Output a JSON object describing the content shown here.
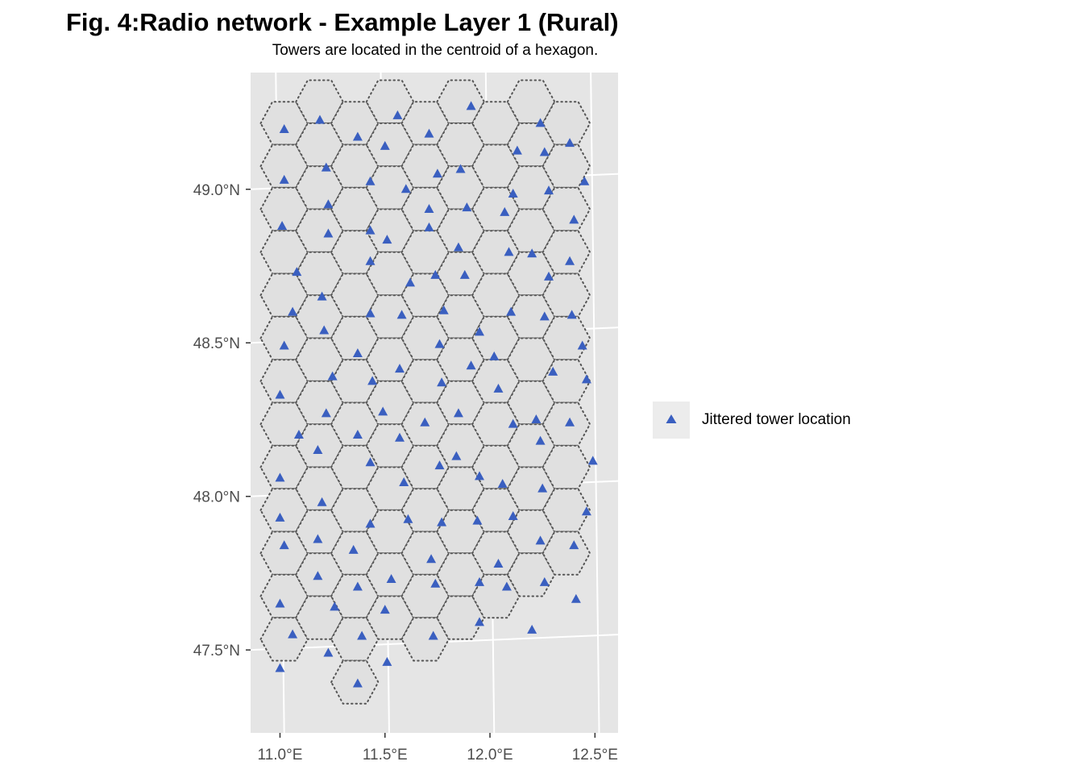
{
  "title": "Fig. 4:Radio network - Example Layer 1 (Rural)",
  "subtitle": "Towers are located in the centroid of a hexagon.",
  "colors": {
    "panel": "#e5e5e5",
    "grid": "#ffffff",
    "hex_fill": "#e0e0e0",
    "hex_stroke": "#555555",
    "marker": "#3a5fc0"
  },
  "legend": {
    "label": "Jittered tower location",
    "marker_icon": "triangle-marker-icon"
  },
  "chart_data": {
    "type": "scatter",
    "xlim": [
      10.86,
      12.61
    ],
    "ylim": [
      47.23,
      49.38
    ],
    "x_ticks": [
      {
        "value": 11.0,
        "label": "11.0°E"
      },
      {
        "value": 11.5,
        "label": "11.5°E"
      },
      {
        "value": 12.0,
        "label": "12.0°E"
      },
      {
        "value": 12.5,
        "label": "12.5°E"
      }
    ],
    "y_ticks": [
      {
        "value": 47.5,
        "label": "47.5°N"
      },
      {
        "value": 48.0,
        "label": "48.0°N"
      },
      {
        "value": 48.5,
        "label": "48.5°N"
      },
      {
        "value": 49.0,
        "label": "49.0°N"
      }
    ],
    "hex_columns": [
      {
        "center_x": 11.02,
        "top_y": 49.215,
        "count": 13
      },
      {
        "center_x": 11.188,
        "top_y": 49.285,
        "count": 13
      },
      {
        "center_x": 11.356,
        "top_y": 49.215,
        "count": 14
      },
      {
        "center_x": 11.524,
        "top_y": 49.285,
        "count": 13
      },
      {
        "center_x": 11.692,
        "top_y": 49.215,
        "count": 13
      },
      {
        "center_x": 11.86,
        "top_y": 49.285,
        "count": 13
      },
      {
        "center_x": 12.028,
        "top_y": 49.215,
        "count": 12
      },
      {
        "center_x": 12.196,
        "top_y": 49.285,
        "count": 12
      },
      {
        "center_x": 12.364,
        "top_y": 49.215,
        "count": 11
      }
    ],
    "hex_spacing_y": 0.14,
    "hex_radius_x": 0.112,
    "towers": [
      [
        11.02,
        49.195
      ],
      [
        11.02,
        49.03
      ],
      [
        11.01,
        48.88
      ],
      [
        11.08,
        48.73
      ],
      [
        11.06,
        48.6
      ],
      [
        11.02,
        48.49
      ],
      [
        11.0,
        48.33
      ],
      [
        11.09,
        48.2
      ],
      [
        11.0,
        48.06
      ],
      [
        11.0,
        47.93
      ],
      [
        11.02,
        47.84
      ],
      [
        11.0,
        47.65
      ],
      [
        11.06,
        47.55
      ],
      [
        11.0,
        47.44
      ],
      [
        11.19,
        49.225
      ],
      [
        11.22,
        49.07
      ],
      [
        11.23,
        48.95
      ],
      [
        11.23,
        48.855
      ],
      [
        11.2,
        48.65
      ],
      [
        11.21,
        48.54
      ],
      [
        11.25,
        48.39
      ],
      [
        11.22,
        48.27
      ],
      [
        11.18,
        48.15
      ],
      [
        11.2,
        47.98
      ],
      [
        11.18,
        47.86
      ],
      [
        11.18,
        47.74
      ],
      [
        11.26,
        47.64
      ],
      [
        11.23,
        47.49
      ],
      [
        11.37,
        49.17
      ],
      [
        11.43,
        49.025
      ],
      [
        11.43,
        48.865
      ],
      [
        11.43,
        48.765
      ],
      [
        11.43,
        48.595
      ],
      [
        11.37,
        48.465
      ],
      [
        11.44,
        48.375
      ],
      [
        11.37,
        48.2
      ],
      [
        11.43,
        48.11
      ],
      [
        11.43,
        47.91
      ],
      [
        11.35,
        47.825
      ],
      [
        11.37,
        47.705
      ],
      [
        11.39,
        47.545
      ],
      [
        11.37,
        47.39
      ],
      [
        11.56,
        49.24
      ],
      [
        11.5,
        49.14
      ],
      [
        11.6,
        49.0
      ],
      [
        11.51,
        48.835
      ],
      [
        11.62,
        48.695
      ],
      [
        11.58,
        48.59
      ],
      [
        11.57,
        48.415
      ],
      [
        11.49,
        48.275
      ],
      [
        11.57,
        48.19
      ],
      [
        11.59,
        48.045
      ],
      [
        11.61,
        47.925
      ],
      [
        11.53,
        47.73
      ],
      [
        11.5,
        47.63
      ],
      [
        11.51,
        47.46
      ],
      [
        11.71,
        49.18
      ],
      [
        11.75,
        49.05
      ],
      [
        11.71,
        48.935
      ],
      [
        11.71,
        48.875
      ],
      [
        11.74,
        48.72
      ],
      [
        11.78,
        48.605
      ],
      [
        11.76,
        48.495
      ],
      [
        11.77,
        48.37
      ],
      [
        11.69,
        48.24
      ],
      [
        11.76,
        48.1
      ],
      [
        11.77,
        47.915
      ],
      [
        11.72,
        47.795
      ],
      [
        11.74,
        47.715
      ],
      [
        11.73,
        47.545
      ],
      [
        11.91,
        49.27
      ],
      [
        11.86,
        49.065
      ],
      [
        11.89,
        48.94
      ],
      [
        11.85,
        48.81
      ],
      [
        11.88,
        48.72
      ],
      [
        11.95,
        48.535
      ],
      [
        11.91,
        48.425
      ],
      [
        11.85,
        48.27
      ],
      [
        11.84,
        48.13
      ],
      [
        11.95,
        48.065
      ],
      [
        11.94,
        47.92
      ],
      [
        11.95,
        47.72
      ],
      [
        11.95,
        47.59
      ],
      [
        12.13,
        49.125
      ],
      [
        12.11,
        48.985
      ],
      [
        12.07,
        48.925
      ],
      [
        12.09,
        48.795
      ],
      [
        12.1,
        48.6
      ],
      [
        12.02,
        48.455
      ],
      [
        12.04,
        48.35
      ],
      [
        12.11,
        48.235
      ],
      [
        12.06,
        48.04
      ],
      [
        12.11,
        47.935
      ],
      [
        12.04,
        47.78
      ],
      [
        12.08,
        47.705
      ],
      [
        12.24,
        49.215
      ],
      [
        12.26,
        49.12
      ],
      [
        12.28,
        48.995
      ],
      [
        12.2,
        48.79
      ],
      [
        12.28,
        48.715
      ],
      [
        12.26,
        48.585
      ],
      [
        12.3,
        48.405
      ],
      [
        12.22,
        48.25
      ],
      [
        12.24,
        48.18
      ],
      [
        12.25,
        48.025
      ],
      [
        12.24,
        47.855
      ],
      [
        12.26,
        47.72
      ],
      [
        12.2,
        47.565
      ],
      [
        12.38,
        49.15
      ],
      [
        12.45,
        49.025
      ],
      [
        12.4,
        48.9
      ],
      [
        12.38,
        48.765
      ],
      [
        12.39,
        48.59
      ],
      [
        12.44,
        48.49
      ],
      [
        12.46,
        48.38
      ],
      [
        12.38,
        48.24
      ],
      [
        12.49,
        48.115
      ],
      [
        12.46,
        47.95
      ],
      [
        12.4,
        47.84
      ],
      [
        12.41,
        47.665
      ]
    ]
  }
}
